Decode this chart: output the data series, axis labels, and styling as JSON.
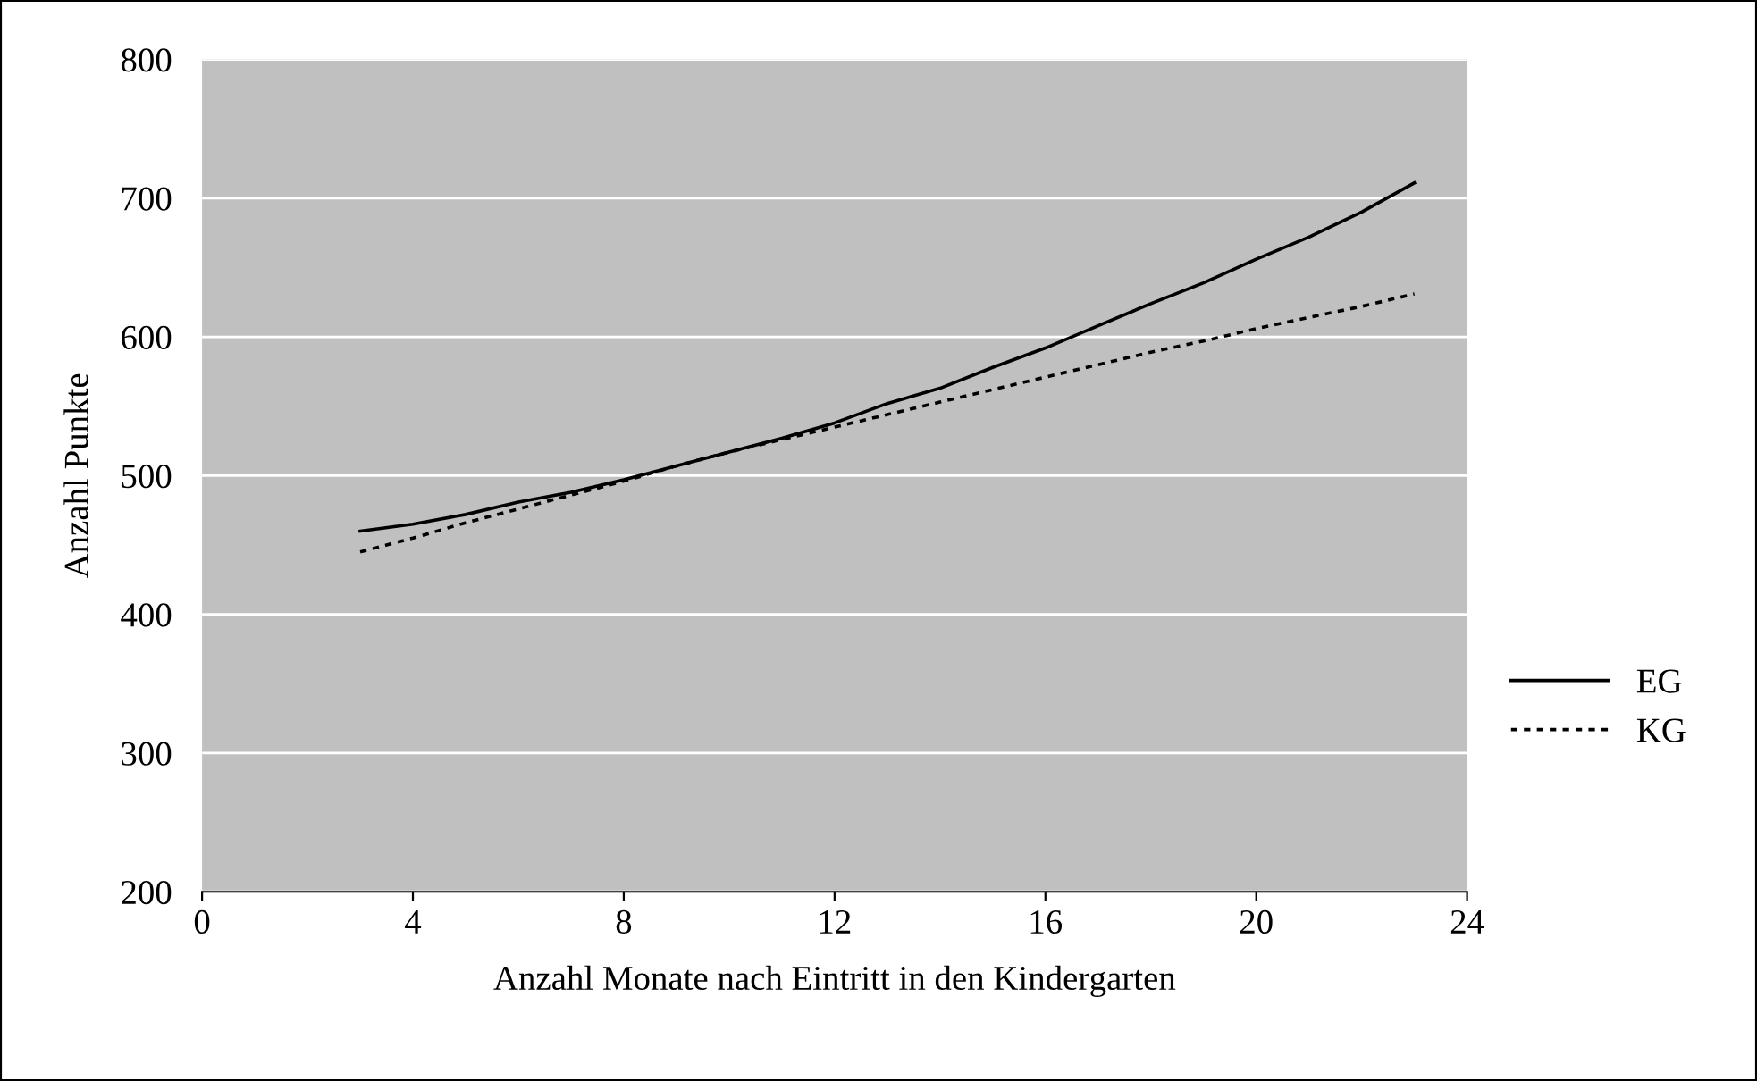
{
  "chart_data": {
    "type": "line",
    "xlabel": "Anzahl Monate nach Eintritt in den Kindergarten",
    "ylabel": "Anzahl Punkte",
    "x": [
      3,
      4,
      5,
      6,
      7,
      8,
      9,
      10,
      11,
      12,
      13,
      14,
      15,
      16,
      17,
      18,
      19,
      20,
      21,
      22,
      23
    ],
    "series": [
      {
        "name": "EG",
        "color": "#000000",
        "line_style": "solid",
        "values": [
          460,
          465,
          472,
          481,
          488,
          497,
          507,
          517,
          527,
          538,
          552,
          563,
          578,
          592,
          608,
          624,
          639,
          656,
          672,
          690,
          711
        ]
      },
      {
        "name": "KG",
        "color": "#000000",
        "line_style": "dotted",
        "values": [
          445,
          455,
          466,
          476,
          486,
          496,
          507,
          517,
          526,
          535,
          544,
          553,
          562,
          571,
          580,
          589,
          597,
          606,
          614,
          622,
          631
        ]
      }
    ],
    "xlim": [
      0,
      24
    ],
    "xticks": [
      0,
      4,
      8,
      12,
      16,
      20,
      24
    ],
    "ylim": [
      200,
      800
    ],
    "yticks": [
      200,
      300,
      400,
      500,
      600,
      700,
      800
    ],
    "grid": "y",
    "legend": "right",
    "marker": "none"
  }
}
